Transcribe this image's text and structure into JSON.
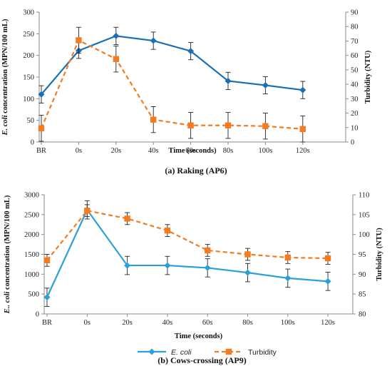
{
  "chart_data": [
    {
      "type": "line",
      "caption": "(a) Raking (AP6)",
      "xlabel": "Time  (seconds)",
      "ylabel_prefix": "E. coli",
      "ylabel_suffix": " concentration (MPN/100 mL)",
      "y2label": "Turbidity (NTU)",
      "categories": [
        "BR",
        "0s",
        "20s",
        "40s",
        "60s",
        "80s",
        "100s",
        "120s"
      ],
      "ylim": [
        0,
        300
      ],
      "yticks": [
        0,
        50,
        100,
        150,
        200,
        250,
        300
      ],
      "y2lim": [
        0,
        90
      ],
      "y2ticks": [
        0,
        10,
        20,
        30,
        40,
        50,
        60,
        70,
        80,
        90
      ],
      "series": [
        {
          "name": "E. coli",
          "axis": "left",
          "color": "#1a6fb5",
          "style": "solid",
          "marker": "diamond",
          "values": [
            110,
            211,
            245,
            234,
            210,
            141,
            131,
            120
          ],
          "errors": [
            20,
            18,
            20,
            20,
            20,
            20,
            20,
            20
          ]
        },
        {
          "name": "Turbidity",
          "axis": "right",
          "color": "#f47b20",
          "style": "dashed",
          "marker": "square",
          "values": [
            9.5,
            70.5,
            57.5,
            15.5,
            11.5,
            11.5,
            11,
            9
          ],
          "errors": [
            9,
            9,
            9,
            9,
            9,
            9,
            9,
            9
          ]
        }
      ]
    },
    {
      "type": "line",
      "caption": "(b) Cows-crossing (AP9)",
      "xlabel": "Time  (seconds)",
      "ylabel_prefix": "E.. coli",
      "ylabel_suffix": " concentration (MPN/100 mL)",
      "y2label": "Turbidity (NTU)",
      "categories": [
        "BR",
        "0s",
        "20s",
        "40s",
        "60s",
        "80s",
        "100s",
        "120s"
      ],
      "ylim": [
        0,
        3000
      ],
      "yticks": [
        0,
        500,
        1000,
        1500,
        2000,
        2500,
        3000
      ],
      "y2lim": [
        80,
        110
      ],
      "y2ticks": [
        80,
        85,
        90,
        95,
        100,
        105,
        110
      ],
      "series": [
        {
          "name": "E. coli",
          "axis": "left",
          "color": "#2d9fd8",
          "style": "solid",
          "marker": "diamond",
          "values": [
            420,
            2620,
            1220,
            1220,
            1160,
            1040,
            900,
            820
          ],
          "errors": [
            230,
            230,
            230,
            230,
            230,
            230,
            230,
            230
          ]
        },
        {
          "name": "Turbidity",
          "axis": "right",
          "color": "#f47b20",
          "style": "dashed",
          "marker": "square",
          "values": [
            93.5,
            106,
            104,
            101,
            96,
            95,
            94.2,
            94
          ],
          "errors": [
            1.5,
            1.5,
            1.5,
            1.5,
            1.5,
            1.5,
            1.5,
            1.5
          ]
        }
      ]
    }
  ],
  "legend": {
    "items": [
      {
        "label": "E. coli",
        "italic": true,
        "color": "#2d9fd8",
        "style": "solid",
        "marker": "diamond"
      },
      {
        "label": "Turbidity",
        "italic": false,
        "color": "#f47b20",
        "style": "dashed",
        "marker": "square"
      }
    ]
  }
}
